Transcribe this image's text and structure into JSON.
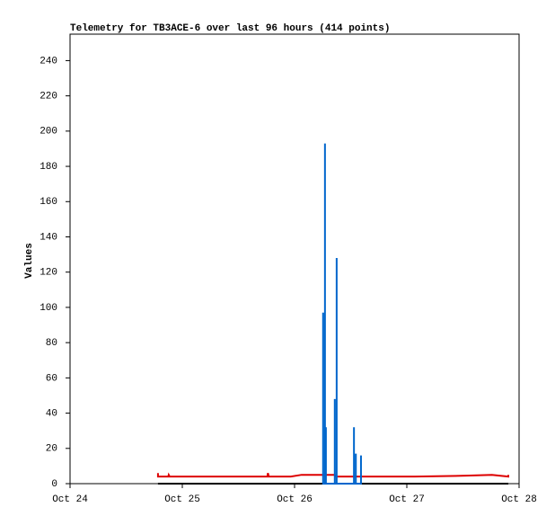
{
  "chart_data": {
    "type": "line",
    "title": "Telemetry for TB3ACE-6 over last 96 hours (414 points)",
    "y_label": "Values",
    "xlim": [
      0,
      96
    ],
    "xticks": [
      {
        "value": 0,
        "label": "Oct 24"
      },
      {
        "value": 24,
        "label": "Oct 25"
      },
      {
        "value": 48,
        "label": "Oct 26"
      },
      {
        "value": 72,
        "label": "Oct 27"
      },
      {
        "value": 96,
        "label": "Oct 28"
      }
    ],
    "ylim": [
      0,
      255
    ],
    "yticks": [
      0,
      20,
      40,
      60,
      80,
      100,
      120,
      140,
      160,
      180,
      200,
      220,
      240
    ],
    "series": [
      {
        "color": "#000000",
        "x": [
          18.8,
          93.7
        ],
        "values": [
          0,
          0
        ]
      },
      {
        "color": "#dd0000",
        "x": [
          18.8,
          18.8,
          19.0,
          21.0,
          21.1,
          21.3,
          42.2,
          42.3,
          42.5,
          47.2,
          49.5,
          56.6,
          56.8,
          73.7,
          84.5,
          90.2,
          93.7,
          93.7
        ],
        "values": [
          6,
          4,
          4,
          4,
          5,
          4,
          4,
          6,
          4,
          4,
          5,
          5,
          4,
          4,
          4.5,
          5,
          4,
          5
        ]
      },
      {
        "color": "#0066cc",
        "x": [
          54.1,
          54.1,
          54.1,
          54.5,
          54.5,
          54.5,
          54.7,
          54.7,
          54.7,
          56.6,
          56.6,
          56.6,
          57.0,
          57.0,
          57.0,
          60.7,
          60.7,
          60.7,
          61.1,
          61.1,
          61.1,
          62.2,
          62.2,
          62.2
        ],
        "values": [
          0,
          97,
          0,
          0,
          193,
          0,
          0,
          32,
          0,
          0,
          48,
          0,
          0,
          128,
          0,
          0,
          32,
          0,
          0,
          17,
          0,
          0,
          16,
          0
        ]
      }
    ]
  }
}
